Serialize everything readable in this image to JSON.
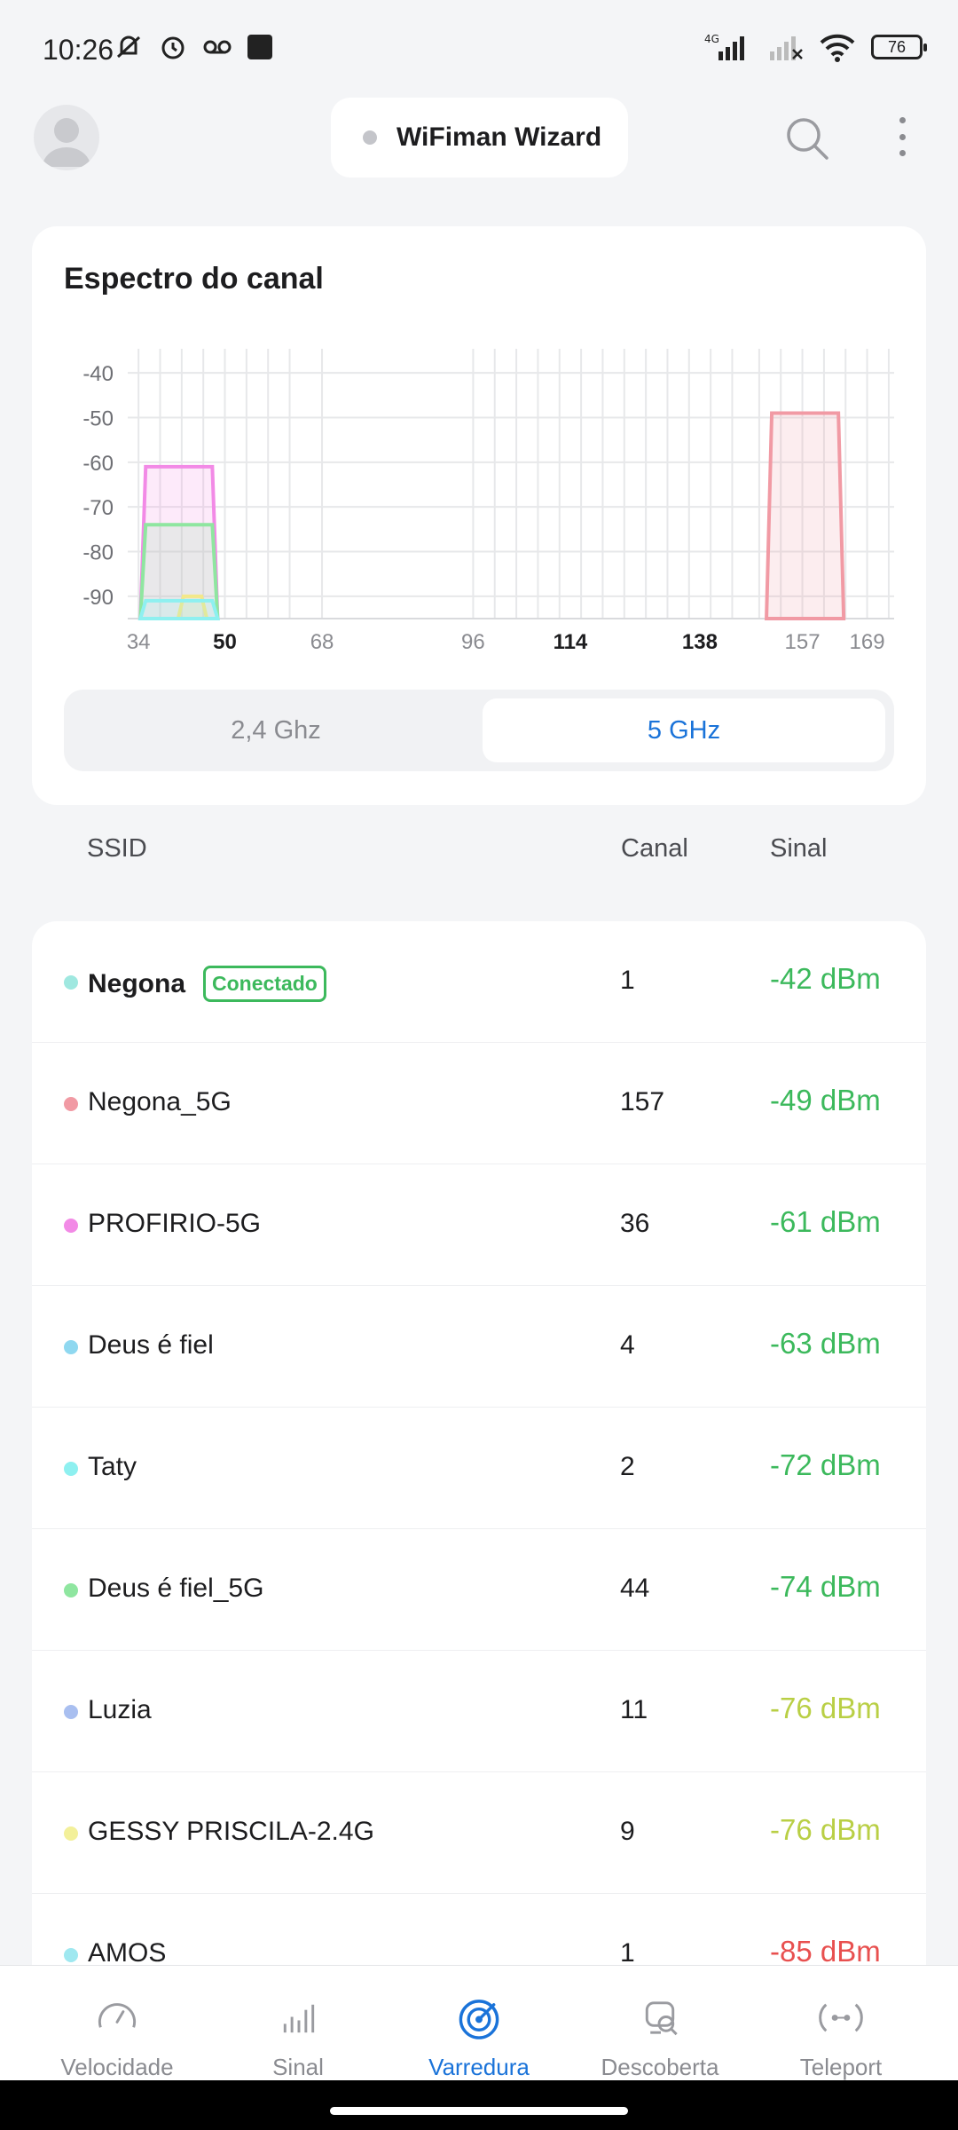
{
  "status": {
    "time": "10:26",
    "network": "4G",
    "battery": "76"
  },
  "header": {
    "wizard_label": "WiFiman Wizard"
  },
  "spectrum": {
    "title": "Espectro do canal",
    "bands": {
      "left": "2,4 Ghz",
      "right": "5 GHz",
      "selected": "5 GHz"
    }
  },
  "chart_data": {
    "type": "area",
    "y_ticks": [
      "-40",
      "-50",
      "-60",
      "-70",
      "-80",
      "-90"
    ],
    "x_ticks": [
      "34",
      "50",
      "68",
      "96",
      "114",
      "138",
      "157",
      "169"
    ],
    "bold_x_ticks": [
      "50",
      "114",
      "138"
    ],
    "ylim": [
      -95,
      -35
    ],
    "xlim": [
      32,
      174
    ],
    "grid": true,
    "series": [
      {
        "channel_from": 35,
        "channel_to": 48,
        "top": -61,
        "color": "#f28ae6"
      },
      {
        "channel_from": 35,
        "channel_to": 48,
        "top": -74,
        "color": "#8fe6a0"
      },
      {
        "channel_from": 42,
        "channel_to": 46,
        "top": -90,
        "color": "#f3e88a"
      },
      {
        "channel_from": 35,
        "channel_to": 48,
        "top": -91,
        "color": "#8ef0f0"
      },
      {
        "channel_from": 151,
        "channel_to": 164,
        "top": -49,
        "color": "#f19aa4"
      }
    ]
  },
  "table": {
    "col_ssid": "SSID",
    "col_canal": "Canal",
    "col_sinal": "Sinal"
  },
  "networks": [
    {
      "ssid": "Negona",
      "badge": "Conectado",
      "canal": "1",
      "sinal": "-42 dBm",
      "dot": "#9fe8e0",
      "color": "#3cb95c",
      "bold": true
    },
    {
      "ssid": "Negona_5G",
      "badge": "",
      "canal": "157",
      "sinal": "-49 dBm",
      "dot": "#f19aa4",
      "color": "#3cb95c",
      "bold": false
    },
    {
      "ssid": "PROFIRIO-5G",
      "badge": "",
      "canal": "36",
      "sinal": "-61 dBm",
      "dot": "#f28ae6",
      "color": "#3cb95c",
      "bold": false
    },
    {
      "ssid": "Deus é fiel",
      "badge": "",
      "canal": "4",
      "sinal": "-63 dBm",
      "dot": "#8fd8f0",
      "color": "#3cb95c",
      "bold": false
    },
    {
      "ssid": "Taty",
      "badge": "",
      "canal": "2",
      "sinal": "-72 dBm",
      "dot": "#8ef0f0",
      "color": "#3cb95c",
      "bold": false
    },
    {
      "ssid": "Deus é fiel_5G",
      "badge": "",
      "canal": "44",
      "sinal": "-74 dBm",
      "dot": "#8fe6a0",
      "color": "#3cb95c",
      "bold": false
    },
    {
      "ssid": "Luzia",
      "badge": "",
      "canal": "11",
      "sinal": "-76 dBm",
      "dot": "#a9bff0",
      "color": "#b9cf45",
      "bold": false
    },
    {
      "ssid": "GESSY PRISCILA-2.4G",
      "badge": "",
      "canal": "9",
      "sinal": "-76 dBm",
      "dot": "#f3f09a",
      "color": "#b9cf45",
      "bold": false
    },
    {
      "ssid": "AMOS",
      "badge": "",
      "canal": "1",
      "sinal": "-85 dBm",
      "dot": "#9fe8f0",
      "color": "#e8504f",
      "bold": false
    }
  ],
  "nav": [
    {
      "label": "Velocidade",
      "icon": "speedometer-icon",
      "active": false
    },
    {
      "label": "Sinal",
      "icon": "signal-bars-icon",
      "active": false
    },
    {
      "label": "Varredura",
      "icon": "radar-icon",
      "active": true
    },
    {
      "label": "Descoberta",
      "icon": "discovery-icon",
      "active": false
    },
    {
      "label": "Teleport",
      "icon": "teleport-icon",
      "active": false
    }
  ]
}
